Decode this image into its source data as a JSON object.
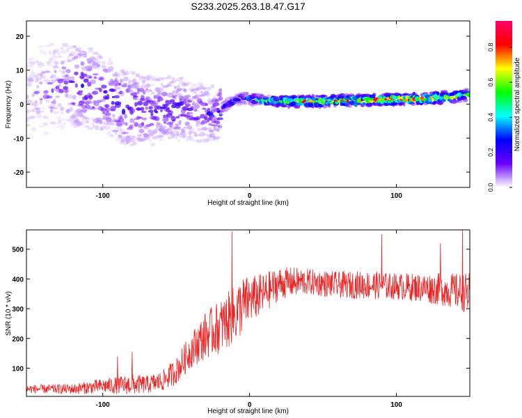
{
  "figure_title": "S233.2025.263.18.47.G17",
  "chart_data": [
    {
      "type": "heatmap",
      "title": "S233.2025.263.18.47.G17",
      "xlabel": "Height of straight line (km)",
      "ylabel": "Frequency (Hz)",
      "xlim": [
        -152,
        150
      ],
      "ylim": [
        -24.5,
        24.5
      ],
      "xticks": [
        -100,
        0,
        100
      ],
      "yticks": [
        -20,
        -10,
        0,
        10,
        20
      ],
      "grid": false,
      "colorbar": {
        "label": "Normalized spectral amplitude",
        "range": [
          0,
          0.95
        ],
        "ticks": [
          0.0,
          0.2,
          0.4,
          0.6,
          0.8
        ],
        "colors": [
          "#ffffff",
          "#6a00ff",
          "#0000ff",
          "#00ffff",
          "#00ff00",
          "#ffff00",
          "#ff0000",
          "#ff0066"
        ]
      },
      "ridge": {
        "x": [
          -150,
          -130,
          -115,
          -100,
          -85,
          -70,
          -55,
          -40,
          -25,
          -15,
          -5,
          0,
          10,
          20,
          40,
          60,
          80,
          100,
          120,
          140,
          150
        ],
        "frequency_hz": [
          3,
          5,
          6,
          3,
          -1,
          -2,
          -1,
          -2,
          -3,
          0,
          2,
          1.5,
          1,
          0.8,
          0.8,
          1,
          1.2,
          1.4,
          1.6,
          2.2,
          3
        ],
        "peak_amplitude": [
          0.1,
          0.15,
          0.22,
          0.2,
          0.22,
          0.2,
          0.22,
          0.18,
          0.2,
          0.3,
          0.35,
          0.4,
          0.5,
          0.7,
          0.85,
          0.8,
          0.85,
          0.9,
          0.9,
          0.7,
          0.5
        ]
      }
    },
    {
      "type": "line",
      "xlabel": "Height of straight line (km)",
      "ylabel": "SNR (10 * v/v)",
      "xlim": [
        -152,
        150
      ],
      "ylim": [
        5,
        565
      ],
      "xticks": [
        -100,
        0,
        100
      ],
      "yticks": [
        100,
        200,
        300,
        400,
        500
      ],
      "grid": false,
      "series": [
        {
          "name": "SNR",
          "color": "#ee2222",
          "envelope": {
            "x": [
              -152,
              -140,
              -120,
              -110,
              -100,
              -90,
              -80,
              -70,
              -60,
              -50,
              -40,
              -30,
              -20,
              -10,
              -5,
              0,
              10,
              20,
              30,
              40,
              60,
              80,
              100,
              120,
              140,
              150
            ],
            "mean": [
              30,
              30,
              30,
              35,
              40,
              42,
              45,
              45,
              55,
              90,
              160,
              210,
              240,
              280,
              310,
              330,
              350,
              385,
              390,
              390,
              380,
              380,
              375,
              370,
              360,
              350
            ],
            "spread": [
              15,
              15,
              18,
              22,
              25,
              30,
              35,
              30,
              35,
              45,
              60,
              80,
              90,
              100,
              100,
              80,
              70,
              55,
              50,
              45,
              45,
              48,
              45,
              50,
              60,
              70
            ]
          },
          "peaks": [
            {
              "x": -90,
              "y": 140
            },
            {
              "x": -80,
              "y": 155
            },
            {
              "x": -12,
              "y": 560
            },
            {
              "x": 90,
              "y": 550
            },
            {
              "x": 130,
              "y": 520
            },
            {
              "x": 145,
              "y": 565
            }
          ]
        }
      ]
    }
  ]
}
